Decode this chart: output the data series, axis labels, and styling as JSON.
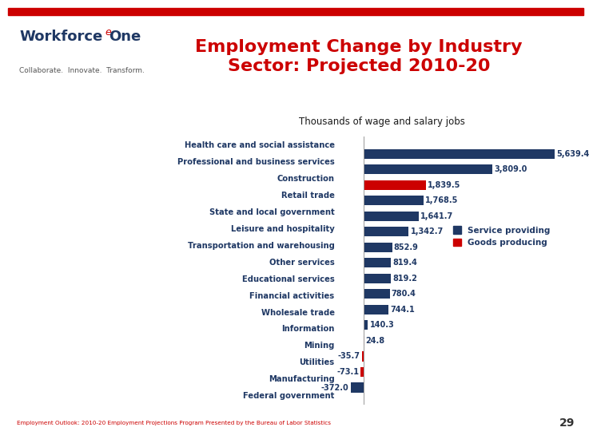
{
  "categories": [
    "Health care and social assistance",
    "Professional and business services",
    "Construction",
    "Retail trade",
    "State and local government",
    "Leisure and hospitality",
    "Transportation and warehousing",
    "Other services",
    "Educational services",
    "Financial activities",
    "Wholesale trade",
    "Information",
    "Mining",
    "Utilities",
    "Manufacturing",
    "Federal government"
  ],
  "values": [
    5639.4,
    3809.0,
    1839.5,
    1768.5,
    1641.7,
    1342.7,
    852.9,
    819.4,
    819.2,
    780.4,
    744.1,
    140.3,
    24.8,
    -35.7,
    -73.1,
    -372.0
  ],
  "colors": [
    "#1F3864",
    "#1F3864",
    "#CC0000",
    "#1F3864",
    "#1F3864",
    "#1F3864",
    "#1F3864",
    "#1F3864",
    "#1F3864",
    "#1F3864",
    "#1F3864",
    "#1F3864",
    "#CC0000",
    "#CC0000",
    "#CC0000",
    "#1F3864"
  ],
  "labels": [
    "5,639.4",
    "3,809.0",
    "1,839.5",
    "1,768.5",
    "1,641.7",
    "1,342.7",
    "852.9",
    "819.4",
    "819.2",
    "780.4",
    "744.1",
    "140.3",
    "24.8",
    "-35.7",
    "-73.1",
    "-372.0"
  ],
  "header_bg": "#F2C18C",
  "header_text_color": "#CC0000",
  "header_title": "Employment Change by Industry\nSector: Projected 2010-20",
  "subtitle": "Thousands of wage and salary jobs",
  "footer_text": "Employment Outlook: 2010-20 Employment Projections Program Presented by the Bureau of Labor Statistics",
  "footer_page": "29",
  "bg_color": "#FFFFFF",
  "service_color": "#1F3864",
  "goods_color": "#CC0000",
  "legend_service": "Service providing",
  "legend_goods": "Goods producing",
  "top_red_bar": "#CC0000",
  "label_color": "#1F3864"
}
